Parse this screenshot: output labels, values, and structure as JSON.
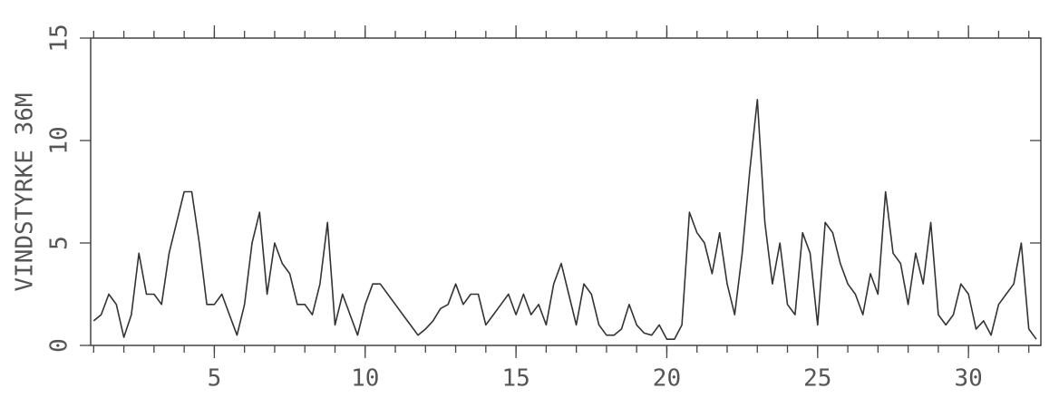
{
  "chart_data": {
    "type": "line",
    "ylabel": "VINDSTYRKE 36M",
    "color": "#333333",
    "x": [
      1,
      1.25,
      1.5,
      1.75,
      2,
      2.25,
      2.5,
      2.75,
      3,
      3.25,
      3.5,
      3.75,
      4,
      4.25,
      4.5,
      4.75,
      5,
      5.25,
      5.5,
      5.75,
      6,
      6.25,
      6.5,
      6.75,
      7,
      7.25,
      7.5,
      7.75,
      8,
      8.25,
      8.5,
      8.75,
      9,
      9.25,
      9.5,
      9.75,
      10,
      10.25,
      10.5,
      10.75,
      11,
      11.25,
      11.5,
      11.75,
      12,
      12.25,
      12.5,
      12.75,
      13,
      13.25,
      13.5,
      13.75,
      14,
      14.25,
      14.5,
      14.75,
      15,
      15.25,
      15.5,
      15.75,
      16,
      16.25,
      16.5,
      16.75,
      17,
      17.25,
      17.5,
      17.75,
      18,
      18.25,
      18.5,
      18.75,
      19,
      19.25,
      19.5,
      19.75,
      20,
      20.25,
      20.5,
      20.75,
      21,
      21.25,
      21.5,
      21.75,
      22,
      22.25,
      22.5,
      22.75,
      23,
      23.25,
      23.5,
      23.75,
      24,
      24.25,
      24.5,
      24.75,
      25,
      25.25,
      25.5,
      25.75,
      26,
      26.25,
      26.5,
      26.75,
      27,
      27.25,
      27.5,
      27.75,
      28,
      28.25,
      28.5,
      28.75,
      29,
      29.25,
      29.5,
      29.75,
      30,
      30.25,
      30.5,
      30.75,
      31,
      31.25,
      31.5,
      31.75,
      32,
      32.25
    ],
    "values": [
      1.2,
      1.5,
      2.5,
      2.0,
      0.4,
      1.5,
      4.5,
      2.5,
      2.5,
      2.0,
      4.5,
      6.0,
      7.5,
      7.5,
      5.0,
      2.0,
      2.0,
      2.5,
      1.5,
      0.5,
      2.0,
      5.0,
      6.5,
      2.5,
      5.0,
      4.0,
      3.5,
      2.0,
      2.0,
      1.5,
      3.0,
      6.0,
      1.0,
      2.5,
      1.5,
      0.5,
      2.0,
      3.0,
      3.0,
      2.5,
      2.0,
      1.5,
      1.0,
      0.5,
      0.8,
      1.2,
      1.8,
      2.0,
      3.0,
      2.0,
      2.5,
      2.5,
      1.0,
      1.5,
      2.0,
      2.5,
      1.5,
      2.5,
      1.5,
      2.0,
      1.0,
      3.0,
      4.0,
      2.5,
      1.0,
      3.0,
      2.5,
      1.0,
      0.5,
      0.5,
      0.8,
      2.0,
      1.0,
      0.6,
      0.5,
      1.0,
      0.3,
      0.3,
      1.0,
      6.5,
      5.5,
      5.0,
      3.5,
      5.5,
      3.0,
      1.5,
      4.5,
      8.5,
      12.0,
      6.0,
      3.0,
      5.0,
      2.0,
      1.5,
      5.5,
      4.5,
      1.0,
      6.0,
      5.5,
      4.0,
      3.0,
      2.5,
      1.5,
      3.5,
      2.5,
      7.5,
      4.5,
      4.0,
      2.0,
      4.5,
      3.0,
      6.0,
      1.5,
      1.0,
      1.5,
      3.0,
      2.5,
      0.8,
      1.2,
      0.5,
      2.0,
      2.5,
      3.0,
      5.0,
      0.8,
      0.3
    ],
    "xlim": [
      0.9,
      32.4
    ],
    "xticks": [
      5,
      10,
      15,
      20,
      25,
      30
    ],
    "xminorticks": [
      1,
      2,
      3,
      4,
      5,
      6,
      7,
      8,
      9,
      10,
      11,
      12,
      13,
      14,
      15,
      16,
      17,
      18,
      19,
      20,
      21,
      22,
      23,
      24,
      25,
      26,
      27,
      28,
      29,
      30,
      31,
      32
    ],
    "ylim": [
      0,
      15
    ],
    "yticks": [
      0,
      5,
      10,
      15
    ],
    "grid": false
  }
}
